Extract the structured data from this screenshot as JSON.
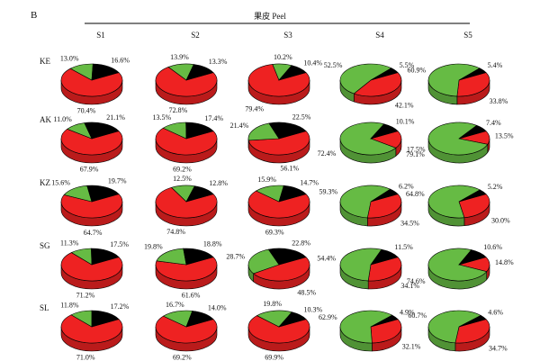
{
  "figure": {
    "panel_letter": "B",
    "header": "果皮 Peel"
  },
  "colors": {
    "red": "#ee2222",
    "green": "#66bb44",
    "black": "#000000"
  },
  "chart_data": {
    "type": "pie",
    "series_order": [
      "red",
      "green",
      "black"
    ],
    "columns": [
      "S1",
      "S2",
      "S3",
      "S4",
      "S5"
    ],
    "rows": [
      {
        "name": "KE",
        "pies": [
          {
            "red": 70.4,
            "green": 13.0,
            "black": 16.6
          },
          {
            "red": 72.8,
            "green": 13.9,
            "black": 13.3
          },
          {
            "red": 79.4,
            "green": 10.2,
            "black": 10.4
          },
          {
            "red": 42.1,
            "green": 52.5,
            "black": 5.5
          },
          {
            "red": 33.8,
            "green": 60.9,
            "black": 5.4
          }
        ]
      },
      {
        "name": "AK",
        "pies": [
          {
            "red": 67.9,
            "green": 11.0,
            "black": 21.1
          },
          {
            "red": 69.2,
            "green": 13.5,
            "black": 17.4
          },
          {
            "red": 56.1,
            "green": 21.4,
            "black": 22.5
          },
          {
            "red": 17.5,
            "green": 72.4,
            "black": 10.1
          },
          {
            "red": 13.5,
            "green": 79.1,
            "black": 7.4
          }
        ]
      },
      {
        "name": "KZ",
        "pies": [
          {
            "red": 64.7,
            "green": 15.6,
            "black": 19.7
          },
          {
            "red": 74.8,
            "green": 12.5,
            "black": 12.8
          },
          {
            "red": 69.3,
            "green": 15.9,
            "black": 14.7
          },
          {
            "red": 34.5,
            "green": 59.3,
            "black": 6.2
          },
          {
            "red": 30.0,
            "green": 64.8,
            "black": 5.2
          }
        ]
      },
      {
        "name": "SG",
        "pies": [
          {
            "red": 71.2,
            "green": 11.3,
            "black": 17.5
          },
          {
            "red": 61.6,
            "green": 19.8,
            "black": 18.8
          },
          {
            "red": 48.5,
            "green": 28.7,
            "black": 22.8
          },
          {
            "red": 34.1,
            "green": 54.4,
            "black": 11.5
          },
          {
            "red": 14.8,
            "green": 74.6,
            "black": 10.6
          }
        ]
      },
      {
        "name": "SL",
        "pies": [
          {
            "red": 71.0,
            "green": 11.8,
            "black": 17.2
          },
          {
            "red": 69.2,
            "green": 16.7,
            "black": 14.0
          },
          {
            "red": 69.9,
            "green": 19.8,
            "black": 10.3
          },
          {
            "red": 32.1,
            "green": 62.9,
            "black": 4.9
          },
          {
            "red": 34.7,
            "green": 60.7,
            "black": 4.6
          }
        ]
      }
    ]
  }
}
